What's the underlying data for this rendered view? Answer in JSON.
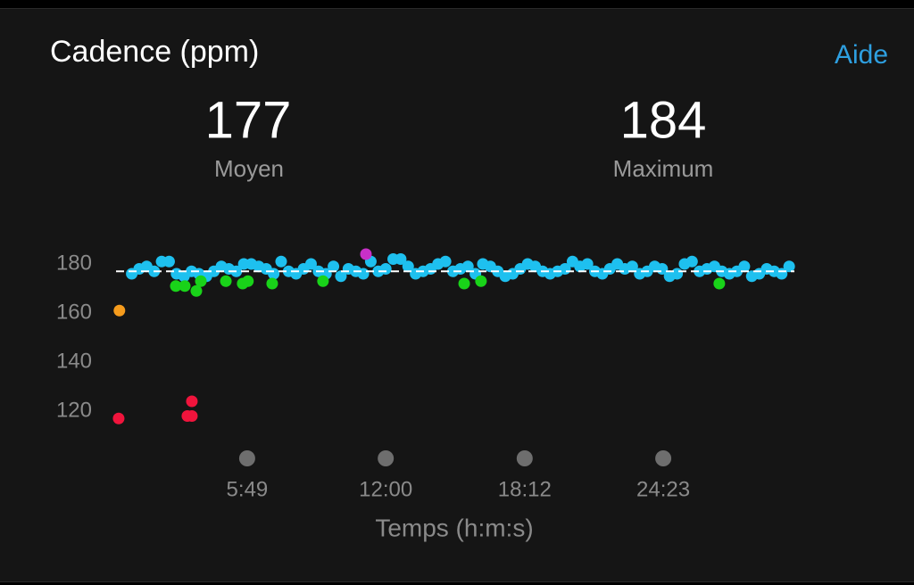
{
  "header": {
    "title": "Cadence (ppm)",
    "help": "Aide"
  },
  "stats": [
    {
      "value": 177,
      "label": "Moyen"
    },
    {
      "value": 184,
      "label": "Maximum"
    }
  ],
  "chart_data": {
    "type": "scatter",
    "x_label": "Temps (h:m:s)",
    "xlim": [
      -14,
      1826
    ],
    "ylim": [
      112,
      190
    ],
    "xticks": [
      {
        "value": 349,
        "label": "5:49"
      },
      {
        "value": 720,
        "label": "12:00"
      },
      {
        "value": 1092,
        "label": "18:12"
      },
      {
        "value": 1463,
        "label": "24:23"
      }
    ],
    "yticks": [
      120,
      140,
      160,
      180
    ],
    "grid": false,
    "series": [
      {
        "color": "#1ec0ef",
        "x": [
          40,
          60,
          80,
          100,
          120,
          140,
          160,
          180,
          200,
          220,
          240,
          260,
          280,
          300,
          320,
          340,
          360,
          380,
          400,
          420,
          440,
          460,
          480,
          500,
          520,
          540,
          560,
          580,
          600,
          620,
          640,
          660,
          680,
          700,
          720,
          740,
          760,
          780,
          800,
          820,
          840,
          860,
          880,
          900,
          920,
          940,
          960,
          980,
          1000,
          1020,
          1040,
          1060,
          1080,
          1100,
          1120,
          1140,
          1160,
          1180,
          1200,
          1220,
          1240,
          1260,
          1280,
          1300,
          1320,
          1340,
          1360,
          1380,
          1400,
          1420,
          1440,
          1460,
          1480,
          1500,
          1520,
          1540,
          1560,
          1580,
          1600,
          1620,
          1640,
          1660,
          1680,
          1700,
          1720,
          1740,
          1760,
          1780,
          1800
        ],
        "values": [
          176,
          178,
          179,
          177,
          181,
          181,
          176,
          175,
          177,
          176,
          175,
          177,
          179,
          178,
          177,
          180,
          180,
          179,
          178,
          176,
          181,
          177,
          176,
          178,
          180,
          177,
          176,
          179,
          175,
          178,
          177,
          176,
          181,
          177,
          178,
          182,
          182,
          179,
          176,
          177,
          178,
          180,
          181,
          177,
          178,
          179,
          176,
          180,
          179,
          177,
          175,
          176,
          178,
          180,
          179,
          177,
          176,
          177,
          178,
          181,
          179,
          180,
          177,
          176,
          178,
          180,
          178,
          179,
          176,
          177,
          179,
          178,
          175,
          176,
          180,
          181,
          177,
          178,
          179,
          177,
          176,
          177,
          179,
          175,
          176,
          178,
          177,
          176,
          179
        ]
      },
      {
        "color": "#19d319",
        "x": [
          158,
          182,
          213,
          225,
          292,
          337,
          351,
          416,
          552,
          930,
          975,
          1613
        ],
        "values": [
          171,
          171,
          169,
          173,
          173,
          172,
          173,
          172,
          173,
          172,
          173,
          172
        ]
      },
      {
        "color": "#f59b1c",
        "x": [
          7
        ],
        "values": [
          161
        ]
      },
      {
        "color": "#f0143c",
        "x": [
          5,
          189,
          201,
          201
        ],
        "values": [
          117,
          118,
          118,
          124
        ]
      },
      {
        "color": "#c830c8",
        "x": [
          667
        ],
        "values": [
          184
        ]
      }
    ]
  }
}
